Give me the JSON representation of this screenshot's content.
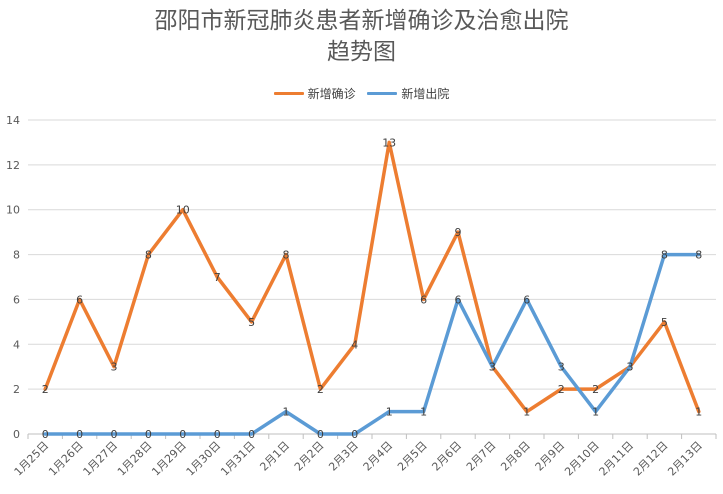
{
  "chart_data": {
    "type": "line",
    "title_line1": "邵阳市新冠肺炎患者新增确诊及治愈出院",
    "title_line2": "趋势图",
    "categories": [
      "1月25日",
      "1月26日",
      "1月27日",
      "1月28日",
      "1月29日",
      "1月30日",
      "1月31日",
      "2月1日",
      "2月2日",
      "2月3日",
      "2月4日",
      "2月5日",
      "2月6日",
      "2月7日",
      "2月8日",
      "2月9日",
      "2月10日",
      "2月11日",
      "2月12日",
      "2月13日"
    ],
    "series": [
      {
        "name": "新增确诊",
        "color": "#ED7D31",
        "values": [
          2,
          6,
          3,
          8,
          10,
          7,
          5,
          8,
          2,
          4,
          13,
          6,
          9,
          3,
          1,
          2,
          2,
          3,
          5,
          1
        ]
      },
      {
        "name": "新增出院",
        "color": "#5B9BD5",
        "values": [
          0,
          0,
          0,
          0,
          0,
          0,
          0,
          1,
          0,
          0,
          1,
          1,
          6,
          3,
          6,
          3,
          1,
          3,
          8,
          8
        ]
      }
    ],
    "ylim": [
      0,
      14
    ],
    "yticks": [
      0,
      2,
      4,
      6,
      8,
      10,
      12,
      14
    ],
    "grid": true,
    "legend_position": "top",
    "data_labels": true
  }
}
